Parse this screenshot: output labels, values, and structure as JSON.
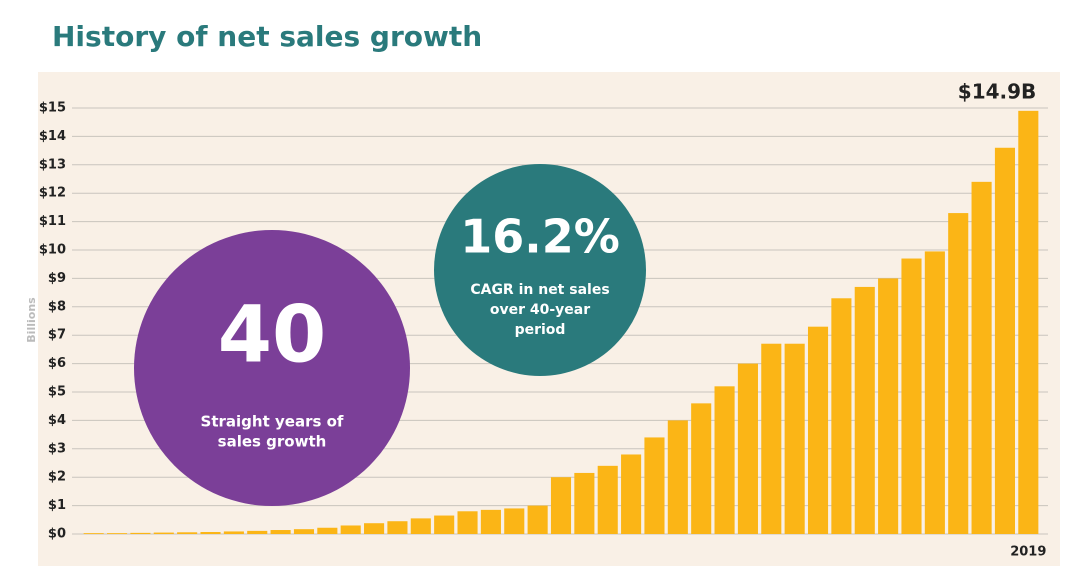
{
  "chart_data": {
    "type": "bar",
    "title": "History of net sales growth",
    "ylabel": "Billions",
    "categories": [
      null,
      null,
      null,
      null,
      null,
      null,
      null,
      null,
      null,
      null,
      null,
      null,
      null,
      null,
      null,
      null,
      null,
      null,
      null,
      null,
      null,
      null,
      null,
      null,
      null,
      null,
      null,
      null,
      null,
      null,
      null,
      null,
      null,
      null,
      null,
      null,
      null,
      null,
      null,
      null,
      "2019"
    ],
    "values": [
      0.03,
      0.03,
      0.04,
      0.05,
      0.06,
      0.07,
      0.09,
      0.11,
      0.14,
      0.17,
      0.22,
      0.3,
      0.38,
      0.45,
      0.55,
      0.65,
      0.8,
      0.85,
      0.9,
      1.0,
      2.0,
      2.15,
      2.4,
      2.8,
      3.4,
      4.0,
      4.6,
      5.2,
      6.0,
      6.7,
      6.7,
      7.3,
      8.3,
      8.7,
      9.0,
      9.7,
      9.95,
      11.3,
      12.4,
      13.6,
      14.9
    ],
    "value_labels": [
      null,
      null,
      null,
      null,
      null,
      null,
      null,
      null,
      null,
      null,
      null,
      null,
      null,
      null,
      null,
      null,
      null,
      null,
      null,
      null,
      null,
      null,
      null,
      null,
      null,
      null,
      null,
      null,
      null,
      null,
      null,
      null,
      null,
      null,
      null,
      null,
      null,
      null,
      null,
      null,
      "$14.9B"
    ],
    "color": "#fbb516",
    "ylim": [
      0,
      15
    ],
    "yticks": [
      {
        "value": 0,
        "label": "$0"
      },
      {
        "value": 1,
        "label": "$1"
      },
      {
        "value": 2,
        "label": "$2"
      },
      {
        "value": 3,
        "label": "$3"
      },
      {
        "value": 4,
        "label": "$4"
      },
      {
        "value": 5,
        "label": "$5"
      },
      {
        "value": 6,
        "label": "$6"
      },
      {
        "value": 7,
        "label": "$7"
      },
      {
        "value": 8,
        "label": "$8"
      },
      {
        "value": 9,
        "label": "$9"
      },
      {
        "value": 10,
        "label": "$10"
      },
      {
        "value": 11,
        "label": "$11"
      },
      {
        "value": 12,
        "label": "$12"
      },
      {
        "value": 13,
        "label": "$13"
      },
      {
        "value": 14,
        "label": "$14"
      },
      {
        "value": 15,
        "label": "$15"
      }
    ],
    "grid": true,
    "callouts": [
      {
        "big": "40",
        "lines": [
          "Straight years of",
          "sales growth"
        ],
        "color": "#7b3f98"
      },
      {
        "big": "16.2%",
        "lines": [
          "CAGR in net sales",
          "over 40-year",
          "period"
        ],
        "color": "#2a7a7c"
      }
    ]
  }
}
